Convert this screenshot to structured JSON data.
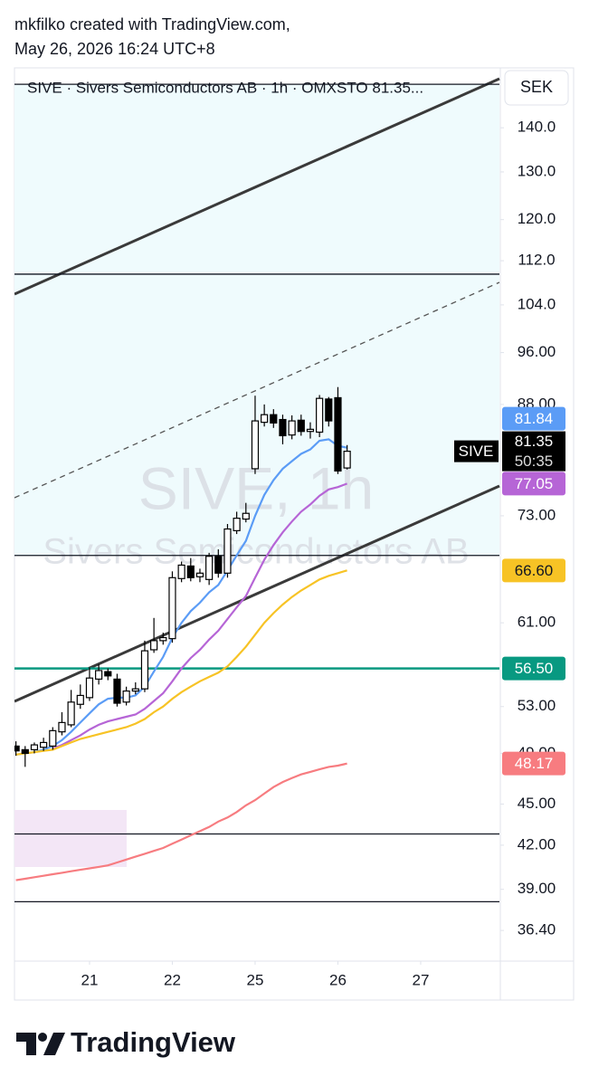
{
  "header": {
    "line1": "mkfilko created with TradingView.com,",
    "line2": "May 26, 2026 16:24 UTC+8"
  },
  "footer": {
    "brand": "TradingView"
  },
  "chart_data": {
    "type": "candlestick",
    "title": "SIVE · Sivers Semiconductors AB · 1h · OMXSTO  81.35...",
    "currency": "SEK",
    "watermark_title": "SIVE, 1h",
    "watermark_subtitle": "Sivers Semiconductors AB",
    "symbol": "SIVE",
    "countdown": "50:35",
    "log_scale": true,
    "grid": false,
    "up_color": "#ffffff",
    "down_color": "#000000",
    "xlim": [
      -0.16,
      52.56
    ],
    "xticks": [
      {
        "value": 8,
        "label": "21"
      },
      {
        "value": 17,
        "label": "22"
      },
      {
        "value": 26,
        "label": "25"
      },
      {
        "value": 35,
        "label": "26"
      },
      {
        "value": 44,
        "label": "27"
      }
    ],
    "ylim": [
      34.68,
      154.8
    ],
    "yticks": [
      {
        "value": 140,
        "label": "140.0"
      },
      {
        "value": 130,
        "label": "130.0"
      },
      {
        "value": 120,
        "label": "120.0"
      },
      {
        "value": 112,
        "label": "112.0"
      },
      {
        "value": 104,
        "label": "104.0"
      },
      {
        "value": 96,
        "label": "96.00"
      },
      {
        "value": 88,
        "label": "88.00"
      },
      {
        "value": 73,
        "label": "73.00"
      },
      {
        "value": 61,
        "label": "61.00"
      },
      {
        "value": 53,
        "label": "53.00"
      },
      {
        "value": 49,
        "label": "49.00"
      },
      {
        "value": 45,
        "label": "45.00"
      },
      {
        "value": 42,
        "label": "42.00"
      },
      {
        "value": 39,
        "label": "39.00"
      },
      {
        "value": 36.4,
        "label": "36.40"
      }
    ],
    "candles": {
      "open": [
        49.6,
        49.3,
        49.3,
        49.5,
        49.6,
        50.8,
        51.4,
        53.2,
        53.8,
        55.5,
        56.2,
        55.5,
        53.4,
        54.4,
        54.6,
        58.3,
        59.2,
        59.4,
        65.7,
        67.1,
        65.9,
        65.6,
        68.2,
        66.3,
        71.2,
        72.6,
        79.0,
        85.4,
        86.5,
        85.8,
        83.6,
        85.7,
        84.1,
        84.0,
        88.8,
        89.0,
        79.1
      ],
      "high": [
        50.0,
        49.6,
        49.9,
        50.3,
        51.2,
        52.5,
        54.5,
        55.0,
        56.6,
        56.9,
        56.5,
        56.0,
        54.8,
        55.2,
        59.2,
        61.5,
        60.0,
        66.5,
        67.6,
        68.0,
        66.8,
        68.6,
        69.0,
        72.0,
        73.5,
        74.6,
        89.3,
        88.0,
        87.3,
        86.5,
        86.4,
        86.5,
        85.4,
        89.4,
        89.1,
        90.6,
        82.2
      ],
      "low": [
        48.8,
        47.9,
        49.0,
        49.2,
        49.3,
        50.5,
        51.2,
        52.8,
        53.5,
        55.0,
        55.4,
        53.0,
        53.1,
        54.1,
        54.3,
        58.0,
        58.8,
        59.0,
        65.3,
        65.4,
        65.3,
        65.0,
        65.8,
        65.8,
        70.8,
        72.2,
        78.3,
        84.8,
        84.6,
        82.3,
        83.0,
        83.5,
        83.1,
        83.3,
        84.8,
        78.3,
        78.9
      ],
      "close": [
        49.2,
        49.0,
        49.7,
        49.9,
        50.9,
        51.6,
        53.4,
        54.0,
        55.6,
        56.3,
        55.8,
        53.3,
        54.4,
        54.6,
        58.2,
        59.2,
        59.5,
        65.8,
        67.2,
        65.8,
        66.3,
        68.2,
        66.3,
        71.4,
        72.7,
        73.3,
        85.6,
        86.5,
        85.3,
        83.5,
        85.6,
        84.1,
        84.4,
        88.9,
        85.6,
        78.7,
        81.35
      ]
    },
    "series": [
      {
        "color": "#5b9cf6",
        "values": [
          48.9,
          49.0,
          49.1,
          49.3,
          49.6,
          50.1,
          50.8,
          51.6,
          52.4,
          53.2,
          53.7,
          53.8,
          53.8,
          54.0,
          54.8,
          56.2,
          57.6,
          59.5,
          61.0,
          62.2,
          63.1,
          64.2,
          65.0,
          66.6,
          68.3,
          70.0,
          73.0,
          75.6,
          77.5,
          79.0,
          80.0,
          81.0,
          81.6,
          82.8,
          83.0,
          82.1,
          81.84
        ]
      },
      {
        "color": "#b665d6",
        "values": [
          null,
          null,
          null,
          null,
          49.4,
          49.7,
          50.1,
          50.5,
          51.0,
          51.4,
          51.7,
          51.9,
          52.1,
          52.3,
          52.8,
          53.5,
          54.2,
          55.3,
          56.5,
          57.5,
          58.3,
          59.3,
          60.2,
          61.4,
          62.6,
          63.8,
          65.8,
          67.8,
          69.5,
          71.0,
          72.3,
          73.5,
          74.4,
          75.5,
          76.3,
          76.6,
          77.05
        ]
      },
      {
        "color": "#f7c325",
        "values": [
          48.9,
          49.0,
          49.1,
          49.2,
          49.3,
          49.6,
          49.9,
          50.2,
          50.4,
          50.6,
          50.8,
          51.0,
          51.2,
          51.5,
          51.9,
          52.5,
          53.0,
          53.7,
          54.3,
          54.8,
          55.3,
          55.7,
          56.1,
          56.7,
          57.6,
          58.6,
          59.8,
          61.0,
          62.0,
          62.9,
          63.7,
          64.4,
          65.0,
          65.6,
          66.0,
          66.3,
          66.6
        ],
        "value_labels": [
          null,
          null,
          null,
          null,
          null,
          null,
          null,
          null,
          null,
          null,
          null,
          null,
          null,
          null,
          null,
          null,
          null,
          null,
          null,
          null,
          null,
          null,
          null,
          null,
          null,
          null,
          null,
          null,
          null,
          null,
          null,
          null,
          null,
          null,
          null,
          null,
          "66.60"
        ]
      },
      {
        "color": "#f77c80",
        "values": [
          39.6,
          39.7,
          39.8,
          39.9,
          40.0,
          40.1,
          40.2,
          40.3,
          40.4,
          40.5,
          40.6,
          40.8,
          41.0,
          41.2,
          41.4,
          41.6,
          41.8,
          42.1,
          42.4,
          42.7,
          43.0,
          43.3,
          43.7,
          44.0,
          44.4,
          44.9,
          45.3,
          45.8,
          46.3,
          46.7,
          47.0,
          47.3,
          47.5,
          47.7,
          47.9,
          48.0,
          48.17
        ]
      }
    ],
    "hlines": [
      {
        "value": 150.6,
        "color": "#131722"
      },
      {
        "value": 109.5,
        "color": "#131722"
      },
      {
        "value": 68.3,
        "color": "#131722"
      },
      {
        "value": 56.5,
        "color": "#089981",
        "label": "56.50"
      },
      {
        "value": 42.8,
        "color": "#131722"
      },
      {
        "value": 38.2,
        "color": "#131722"
      }
    ]
  }
}
